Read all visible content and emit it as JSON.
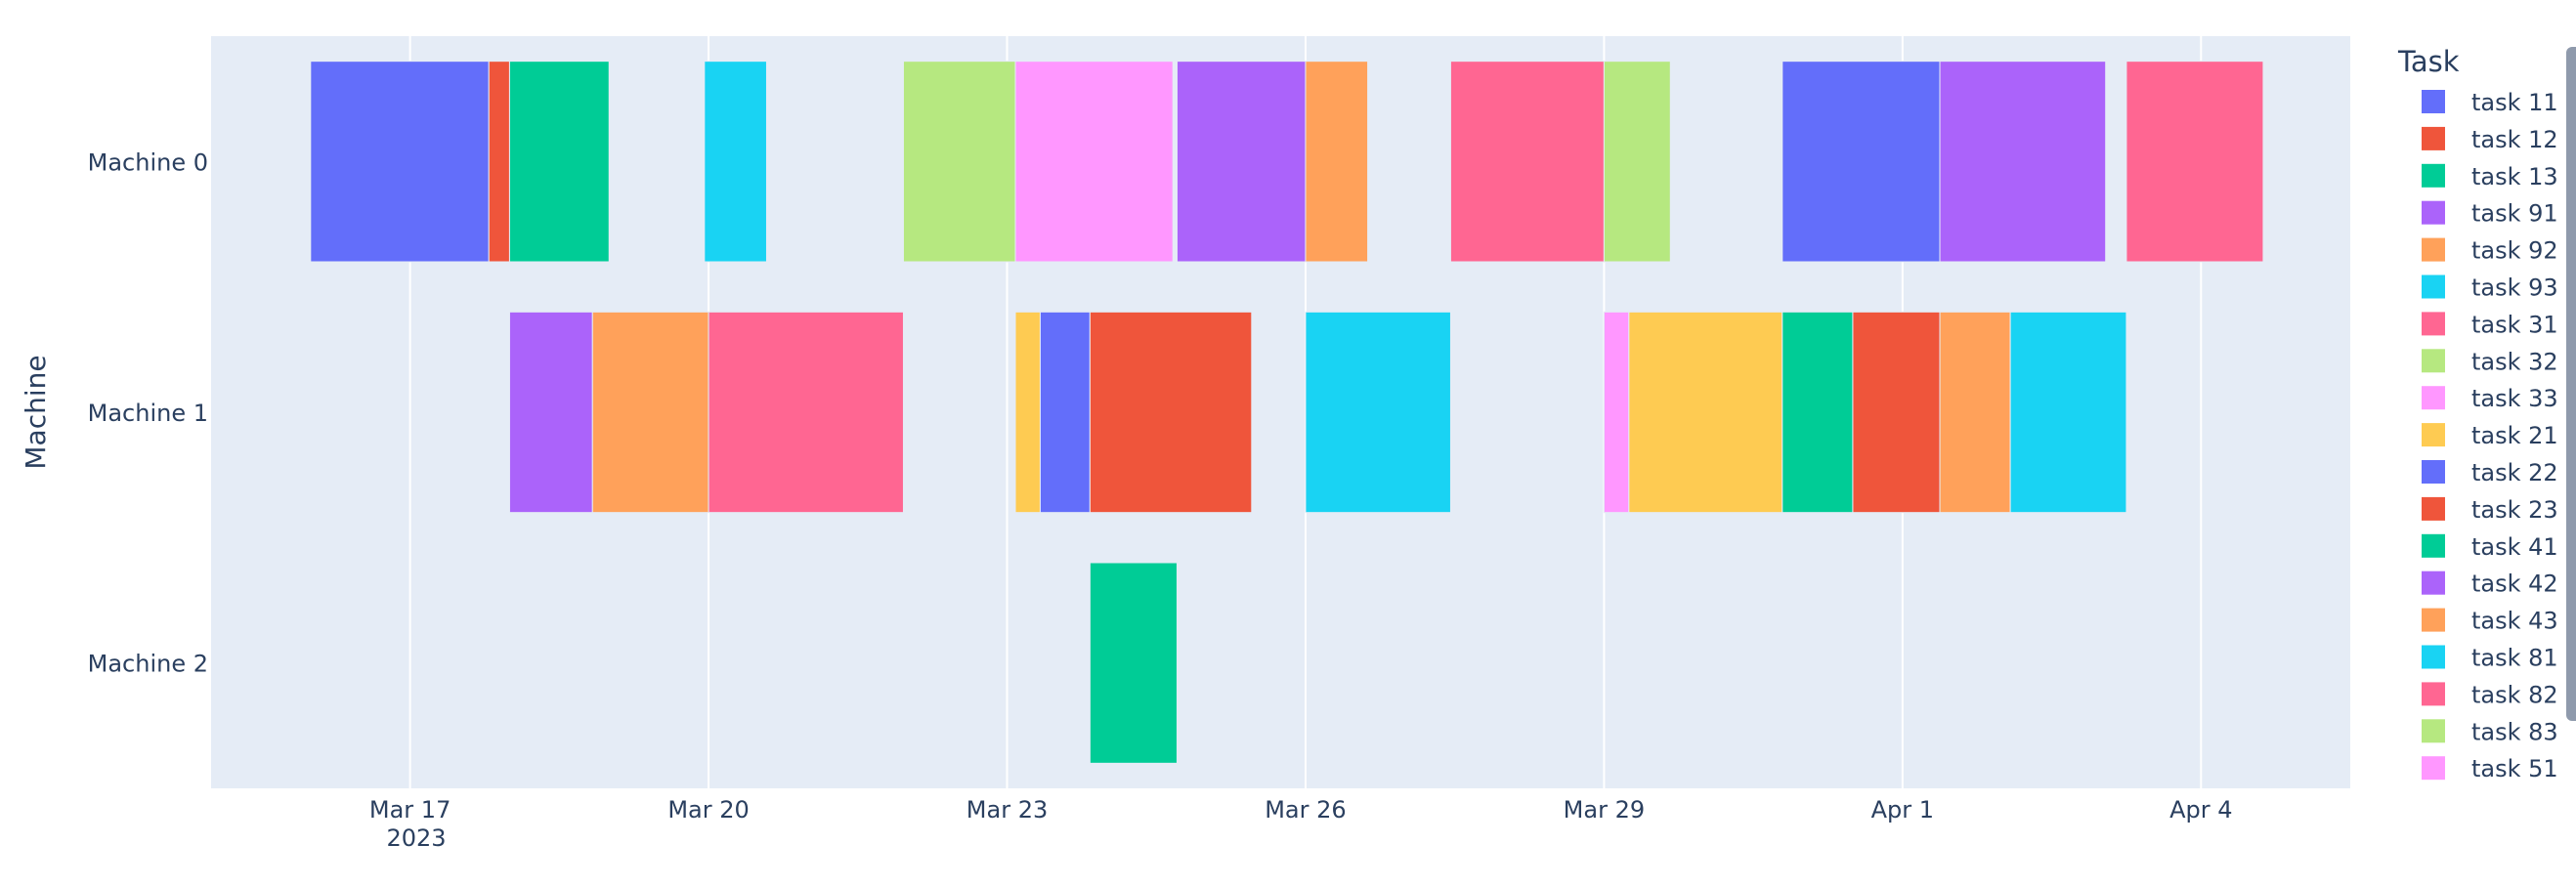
{
  "chart_data": {
    "type": "gantt",
    "title": "",
    "xlabel": "",
    "ylabel": "Machine",
    "legend_title": "Task",
    "legend_position": "right",
    "grid": true,
    "year_label": "2023",
    "x_ticks": [
      {
        "date": "2023-03-17",
        "label": "Mar 17"
      },
      {
        "date": "2023-03-20",
        "label": "Mar 20"
      },
      {
        "date": "2023-03-23",
        "label": "Mar 23"
      },
      {
        "date": "2023-03-26",
        "label": "Mar 26"
      },
      {
        "date": "2023-03-29",
        "label": "Mar 29"
      },
      {
        "date": "2023-04-01",
        "label": "Apr 1"
      },
      {
        "date": "2023-04-04",
        "label": "Apr 4"
      }
    ],
    "x_range": [
      "2023-03-15T00:00",
      "2023-04-05T12:00"
    ],
    "machines": [
      "Machine 0",
      "Machine 1",
      "Machine 2"
    ],
    "tasks": [
      {
        "name": "task 11",
        "color": "#636efa"
      },
      {
        "name": "task 12",
        "color": "#EF553B"
      },
      {
        "name": "task 13",
        "color": "#00cc96"
      },
      {
        "name": "task 91",
        "color": "#ab63fa"
      },
      {
        "name": "task 92",
        "color": "#FFA15A"
      },
      {
        "name": "task 93",
        "color": "#19d3f3"
      },
      {
        "name": "task 31",
        "color": "#FF6692"
      },
      {
        "name": "task 32",
        "color": "#B6E880"
      },
      {
        "name": "task 33",
        "color": "#FF97FF"
      },
      {
        "name": "task 21",
        "color": "#FECB52"
      },
      {
        "name": "task 22",
        "color": "#636efa"
      },
      {
        "name": "task 23",
        "color": "#EF553B"
      },
      {
        "name": "task 41",
        "color": "#00cc96"
      },
      {
        "name": "task 42",
        "color": "#ab63fa"
      },
      {
        "name": "task 43",
        "color": "#FFA15A"
      },
      {
        "name": "task 81",
        "color": "#19d3f3"
      },
      {
        "name": "task 82",
        "color": "#FF6692"
      },
      {
        "name": "task 83",
        "color": "#B6E880"
      },
      {
        "name": "task 51",
        "color": "#FF97FF"
      }
    ],
    "bars": [
      {
        "task": "task 11",
        "machine": "Machine 0",
        "start": "2023-03-16T00:00",
        "end": "2023-03-17T19:00"
      },
      {
        "task": "task 12",
        "machine": "Machine 0",
        "start": "2023-03-17T19:00",
        "end": "2023-03-18T00:00"
      },
      {
        "task": "task 13",
        "machine": "Machine 0",
        "start": "2023-03-18T00:00",
        "end": "2023-03-19T00:00"
      },
      {
        "task": "task 93",
        "machine": "Machine 0",
        "start": "2023-03-19T23:00",
        "end": "2023-03-20T14:00"
      },
      {
        "task": "task 32",
        "machine": "Machine 0",
        "start": "2023-03-21T23:00",
        "end": "2023-03-23T02:00"
      },
      {
        "task": "task 33",
        "machine": "Machine 0",
        "start": "2023-03-23T02:00",
        "end": "2023-03-24T16:00"
      },
      {
        "task": "task 91",
        "machine": "Machine 0",
        "start": "2023-03-24T17:00",
        "end": "2023-03-26T00:00"
      },
      {
        "task": "task 92",
        "machine": "Machine 0",
        "start": "2023-03-26T00:00",
        "end": "2023-03-26T15:00"
      },
      {
        "task": "task 31",
        "machine": "Machine 0",
        "start": "2023-03-27T11:00",
        "end": "2023-03-29T00:00"
      },
      {
        "task": "task 83",
        "machine": "Machine 0",
        "start": "2023-03-29T00:00",
        "end": "2023-03-29T16:00"
      },
      {
        "task": "task 11",
        "machine": "Machine 0",
        "start": "2023-03-30T19:00",
        "end": "2023-04-01T09:00"
      },
      {
        "task": "task 42",
        "machine": "Machine 0",
        "start": "2023-04-01T09:00",
        "end": "2023-04-03T01:00"
      },
      {
        "task": "task 82",
        "machine": "Machine 0",
        "start": "2023-04-03T06:00",
        "end": "2023-04-04T15:00"
      },
      {
        "task": "task 91",
        "machine": "Machine 1",
        "start": "2023-03-18T00:00",
        "end": "2023-03-18T20:00"
      },
      {
        "task": "task 92",
        "machine": "Machine 1",
        "start": "2023-03-18T20:00",
        "end": "2023-03-20T00:00"
      },
      {
        "task": "task 31",
        "machine": "Machine 1",
        "start": "2023-03-20T00:00",
        "end": "2023-03-21T23:00"
      },
      {
        "task": "task 21",
        "machine": "Machine 1",
        "start": "2023-03-23T02:00",
        "end": "2023-03-23T08:00"
      },
      {
        "task": "task 22",
        "machine": "Machine 1",
        "start": "2023-03-23T08:00",
        "end": "2023-03-23T20:00"
      },
      {
        "task": "task 23",
        "machine": "Machine 1",
        "start": "2023-03-23T20:00",
        "end": "2023-03-25T11:00"
      },
      {
        "task": "task 81",
        "machine": "Machine 1",
        "start": "2023-03-26T00:00",
        "end": "2023-03-27T11:00"
      },
      {
        "task": "task 51",
        "machine": "Machine 1",
        "start": "2023-03-29T00:00",
        "end": "2023-03-29T06:00"
      },
      {
        "task": "task 21",
        "machine": "Machine 1",
        "start": "2023-03-29T06:00",
        "end": "2023-03-30T19:00"
      },
      {
        "task": "task 41",
        "machine": "Machine 1",
        "start": "2023-03-30T19:00",
        "end": "2023-03-31T12:00"
      },
      {
        "task": "task 23",
        "machine": "Machine 1",
        "start": "2023-03-31T12:00",
        "end": "2023-04-01T09:00"
      },
      {
        "task": "task 43",
        "machine": "Machine 1",
        "start": "2023-04-01T09:00",
        "end": "2023-04-02T02:00"
      },
      {
        "task": "task 81",
        "machine": "Machine 1",
        "start": "2023-04-02T02:00",
        "end": "2023-04-03T06:00"
      },
      {
        "task": "task 13",
        "machine": "Machine 2",
        "start": "2023-03-23T20:00",
        "end": "2023-03-24T17:00"
      }
    ]
  }
}
